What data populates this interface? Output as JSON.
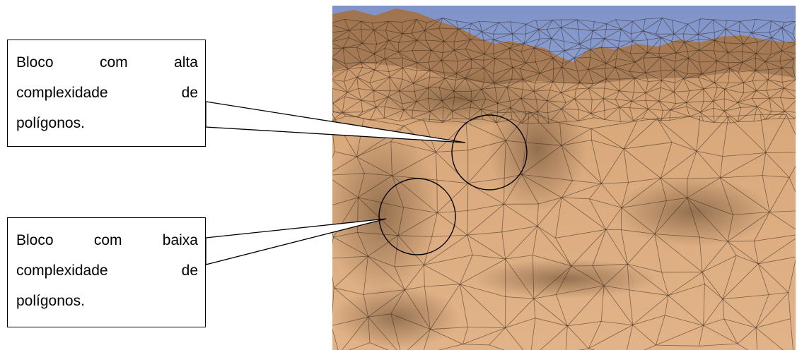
{
  "callouts": {
    "high": {
      "line1": [
        "Bloco",
        "com",
        "alta"
      ],
      "line2": [
        "complexidade",
        "de"
      ],
      "line3": "polígonos."
    },
    "low": {
      "line1": [
        "Bloco",
        "com",
        "baixa"
      ],
      "line2": [
        "complexidade",
        "de"
      ],
      "line3": "polígonos."
    }
  },
  "colors": {
    "sky_top": "#7f93c9",
    "sky_bottom": "#c9d1e6",
    "terrain_light": "#e4b487",
    "terrain_mid": "#c7986a",
    "terrain_dark": "#6a4e35",
    "mesh_line": "#2d2016"
  }
}
